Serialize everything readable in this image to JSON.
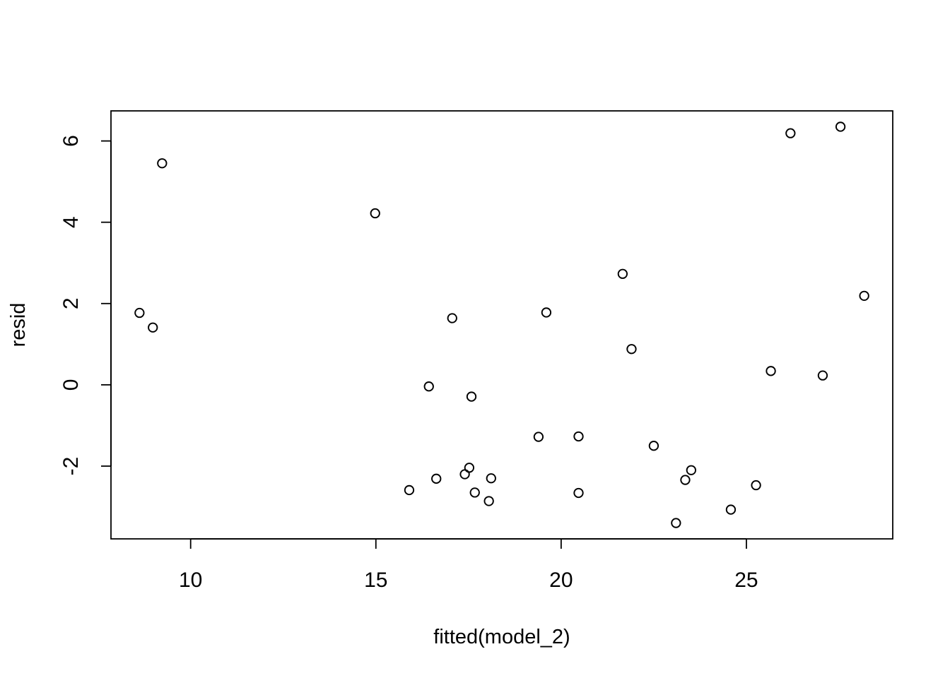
{
  "chart_data": {
    "type": "scatter",
    "title": "",
    "xlabel": "fitted(model_2)",
    "ylabel": "resid",
    "xlim": [
      7.85,
      28.95
    ],
    "ylim": [
      -3.79,
      6.74
    ],
    "x_ticks": [
      10,
      15,
      20,
      25
    ],
    "y_ticks": [
      -2,
      0,
      2,
      4,
      6
    ],
    "x_tick_labels": [
      "10",
      "15",
      "20",
      "25"
    ],
    "y_tick_labels": [
      "-2",
      "0",
      "2",
      "4",
      "6"
    ],
    "grid": false,
    "legend": "none",
    "marker": "open-circle",
    "points": [
      {
        "x": 8.62,
        "y": 1.77
      },
      {
        "x": 8.98,
        "y": 1.41
      },
      {
        "x": 9.23,
        "y": 5.45
      },
      {
        "x": 14.98,
        "y": 4.22
      },
      {
        "x": 15.9,
        "y": -2.59
      },
      {
        "x": 16.43,
        "y": -0.04
      },
      {
        "x": 16.63,
        "y": -2.31
      },
      {
        "x": 17.06,
        "y": 1.64
      },
      {
        "x": 17.4,
        "y": -2.2
      },
      {
        "x": 17.52,
        "y": -2.04
      },
      {
        "x": 17.58,
        "y": -0.29
      },
      {
        "x": 17.67,
        "y": -2.65
      },
      {
        "x": 18.05,
        "y": -2.86
      },
      {
        "x": 18.11,
        "y": -2.3
      },
      {
        "x": 19.39,
        "y": -1.28
      },
      {
        "x": 19.6,
        "y": 1.78
      },
      {
        "x": 20.47,
        "y": -1.27
      },
      {
        "x": 20.47,
        "y": -2.66
      },
      {
        "x": 21.66,
        "y": 2.73
      },
      {
        "x": 21.9,
        "y": 0.88
      },
      {
        "x": 22.5,
        "y": -1.5
      },
      {
        "x": 23.1,
        "y": -3.4
      },
      {
        "x": 23.35,
        "y": -2.34
      },
      {
        "x": 23.51,
        "y": -2.1
      },
      {
        "x": 24.58,
        "y": -3.07
      },
      {
        "x": 25.26,
        "y": -2.47
      },
      {
        "x": 25.66,
        "y": 0.34
      },
      {
        "x": 26.19,
        "y": 6.19
      },
      {
        "x": 27.06,
        "y": 0.23
      },
      {
        "x": 27.54,
        "y": 6.35
      },
      {
        "x": 28.18,
        "y": 2.19
      }
    ]
  }
}
